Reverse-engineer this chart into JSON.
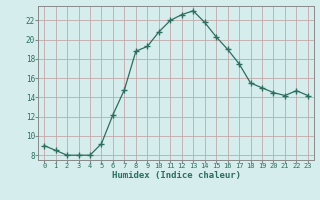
{
  "x": [
    0,
    1,
    2,
    3,
    4,
    5,
    6,
    7,
    8,
    9,
    10,
    11,
    12,
    13,
    14,
    15,
    16,
    17,
    18,
    19,
    20,
    21,
    22,
    23
  ],
  "y": [
    9.0,
    8.5,
    8.0,
    8.0,
    8.0,
    9.2,
    12.2,
    14.8,
    18.8,
    19.3,
    20.8,
    22.0,
    22.6,
    23.0,
    21.8,
    20.3,
    19.0,
    17.5,
    15.5,
    15.0,
    14.5,
    14.2,
    14.7,
    14.2
  ],
  "xlabel": "Humidex (Indice chaleur)",
  "xlim": [
    -0.5,
    23.5
  ],
  "ylim": [
    7.5,
    23.5
  ],
  "yticks": [
    8,
    10,
    12,
    14,
    16,
    18,
    20,
    22
  ],
  "xticks": [
    0,
    1,
    2,
    3,
    4,
    5,
    6,
    7,
    8,
    9,
    10,
    11,
    12,
    13,
    14,
    15,
    16,
    17,
    18,
    19,
    20,
    21,
    22,
    23
  ],
  "line_color": "#2d6e5e",
  "bg_color": "#d5eeed",
  "grid_color": "#c4a8a8",
  "spine_color": "#888888",
  "label_color": "#2d6e5e",
  "tick_label_color": "#2d6e5e"
}
